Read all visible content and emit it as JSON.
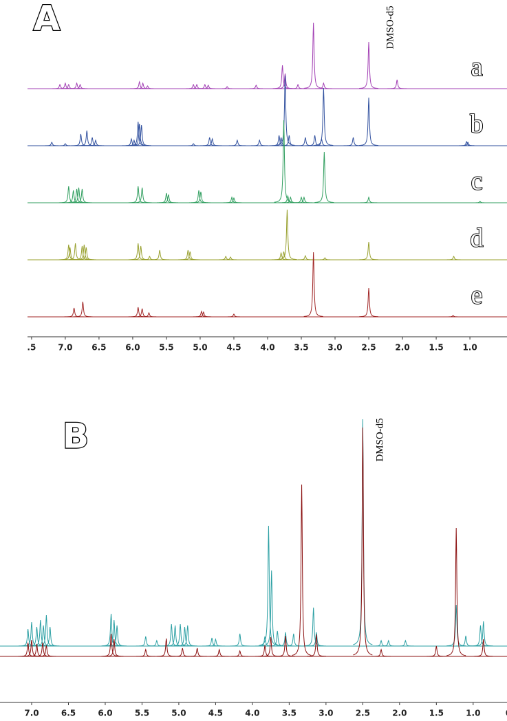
{
  "chart_data": [
    {
      "type": "nmr",
      "title": "A",
      "annotation": "DMSO-d5",
      "xlim": [
        7.56,
        0.45
      ],
      "xticks": [
        {
          "value": 7.5,
          "label": ".5"
        },
        {
          "value": 7,
          "label": "7.0"
        },
        6.5,
        {
          "value": 6,
          "label": "6.0"
        },
        5.5,
        {
          "value": 5,
          "label": "5.0"
        },
        4.5,
        {
          "value": 4,
          "label": "4.0"
        },
        3.5,
        {
          "value": 3,
          "label": "3.0"
        },
        2.5,
        {
          "value": 2,
          "label": "2.0"
        },
        1.5,
        {
          "value": 1,
          "label": "1.0"
        }
      ],
      "series": [
        {
          "name": "a",
          "color": "#a23fb4",
          "x": [
            7.08,
            7.0,
            6.95,
            6.83,
            6.78,
            5.9,
            5.85,
            5.78,
            5.1,
            5.05,
            4.93,
            4.88,
            4.6,
            4.17,
            3.78,
            3.74,
            3.55,
            3.32,
            3.17,
            2.5,
            2.08
          ],
          "values": [
            6,
            8,
            6,
            8,
            6,
            10,
            8,
            4,
            6,
            6,
            6,
            5,
            3,
            5,
            34,
            22,
            6,
            96,
            8,
            68,
            13
          ]
        },
        {
          "name": "b",
          "color": "#2f4f9e",
          "x": [
            7.2,
            7.0,
            6.77,
            6.68,
            6.6,
            6.55,
            6.02,
            5.98,
            5.92,
            5.9,
            5.87,
            5.1,
            4.86,
            4.82,
            4.45,
            4.12,
            3.83,
            3.8,
            3.74,
            3.68,
            3.44,
            3.3,
            3.2,
            3.17,
            2.73,
            2.5,
            1.05,
            1.03
          ],
          "values": [
            5,
            3,
            17,
            22,
            12,
            8,
            10,
            8,
            35,
            32,
            30,
            3,
            12,
            10,
            8,
            8,
            15,
            12,
            102,
            15,
            12,
            15,
            10,
            84,
            12,
            70,
            6,
            5
          ]
        },
        {
          "name": "c",
          "color": "#2f9e5e",
          "x": [
            6.95,
            6.88,
            6.83,
            6.8,
            6.75,
            5.92,
            5.86,
            5.5,
            5.47,
            5.02,
            4.99,
            4.53,
            4.5,
            3.76,
            3.7,
            3.66,
            3.5,
            3.46,
            3.16,
            2.5,
            0.85
          ],
          "values": [
            24,
            18,
            20,
            22,
            20,
            24,
            22,
            14,
            12,
            18,
            16,
            8,
            7,
            120,
            10,
            8,
            8,
            8,
            74,
            8,
            2
          ]
        },
        {
          "name": "d",
          "color": "#98a02e",
          "x": [
            6.95,
            6.93,
            6.85,
            6.75,
            6.72,
            6.69,
            5.92,
            5.88,
            5.75,
            5.6,
            5.18,
            5.15,
            4.62,
            4.55,
            3.8,
            3.76,
            3.71,
            3.44,
            3.15,
            2.5,
            1.24
          ],
          "values": [
            22,
            18,
            24,
            20,
            22,
            18,
            24,
            20,
            5,
            14,
            14,
            12,
            5,
            4,
            10,
            12,
            73,
            6,
            3,
            26,
            5
          ]
        },
        {
          "name": "e",
          "color": "#a02424",
          "x": [
            6.87,
            6.74,
            5.92,
            5.86,
            5.76,
            4.98,
            4.95,
            4.5,
            3.32,
            2.5,
            1.25
          ],
          "values": [
            13,
            22,
            14,
            12,
            6,
            8,
            7,
            4,
            94,
            42,
            2
          ]
        }
      ]
    },
    {
      "type": "nmr",
      "title": "B",
      "annotation": "DMSO-d5",
      "xlim": [
        7.43,
        0.54
      ],
      "xticks": [
        {
          "value": 7,
          "label": "7.0"
        },
        6.5,
        {
          "value": 6,
          "label": "6.0"
        },
        5.5,
        {
          "value": 5,
          "label": "5.0"
        },
        4.5,
        {
          "value": 4,
          "label": "4.0"
        },
        3.5,
        {
          "value": 3,
          "label": "3.0"
        },
        2.5,
        {
          "value": 2,
          "label": "2.0"
        },
        1.5,
        {
          "value": 1,
          "label": "1.0"
        },
        {
          "value": 0.5,
          "label": "0."
        }
      ],
      "series": [
        {
          "color": "#2a9fa3",
          "x": [
            7.05,
            7.0,
            6.93,
            6.88,
            6.84,
            6.8,
            6.75,
            5.92,
            5.88,
            5.84,
            5.45,
            5.3,
            5.1,
            5.05,
            4.98,
            4.92,
            4.88,
            4.55,
            4.5,
            4.17,
            3.83,
            3.78,
            3.74,
            3.66,
            3.55,
            3.44,
            3.17,
            3.13,
            2.5,
            2.25,
            2.15,
            1.92,
            1.23,
            1.1,
            0.9,
            0.86
          ],
          "values": [
            25,
            35,
            28,
            38,
            30,
            45,
            28,
            47,
            38,
            30,
            14,
            8,
            32,
            30,
            32,
            28,
            30,
            12,
            10,
            18,
            14,
            175,
            110,
            22,
            20,
            18,
            56,
            20,
            330,
            8,
            8,
            8,
            60,
            15,
            30,
            36
          ]
        },
        {
          "color": "#8b1010",
          "x": [
            7.05,
            7.0,
            6.93,
            6.85,
            6.8,
            5.92,
            5.88,
            5.45,
            5.17,
            4.95,
            4.75,
            4.45,
            4.17,
            3.83,
            3.75,
            3.55,
            3.33,
            3.13,
            2.5,
            2.25,
            1.5,
            1.23,
            0.86
          ],
          "values": [
            20,
            24,
            18,
            20,
            16,
            33,
            25,
            10,
            26,
            12,
            12,
            10,
            8,
            16,
            28,
            30,
            250,
            32,
            333,
            10,
            15,
            187,
            25
          ]
        }
      ]
    }
  ]
}
